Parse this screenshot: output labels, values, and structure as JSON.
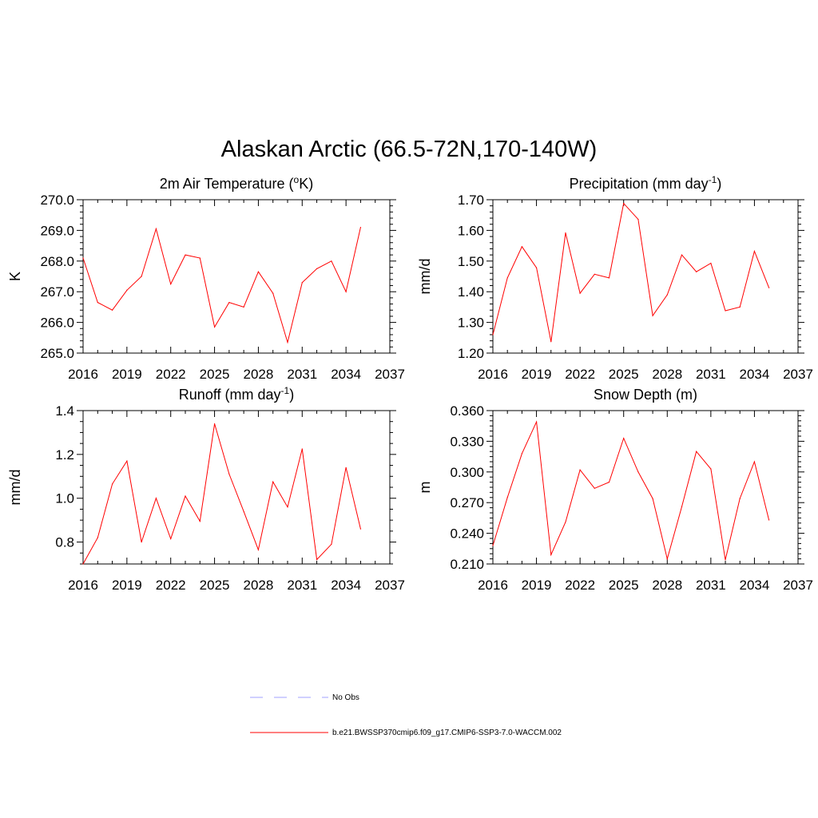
{
  "title": "Alaskan Arctic (66.5-72N,170-140W)",
  "colors": {
    "series": "#ff0000",
    "obs": "#a0a0ff",
    "axis": "#000000"
  },
  "legend": {
    "items": [
      {
        "label": "No Obs",
        "style": "dashed",
        "color": "#a0a0ff"
      },
      {
        "label": "b.e21.BWSSP370cmip6.f09_g17.CMIP6-SSP3-7.0-WACCM.002",
        "style": "solid",
        "color": "#ff0000"
      }
    ]
  },
  "chart_data": [
    {
      "type": "line",
      "title_main": "2m Air Temperature (",
      "title_sup": "o",
      "title_after": "K)",
      "ylabel": "K",
      "xlim": [
        2016,
        2037
      ],
      "ylim": [
        265.0,
        270.0
      ],
      "xticks": [
        2016,
        2019,
        2022,
        2025,
        2028,
        2031,
        2034,
        2037
      ],
      "yticks": [
        265.0,
        266.0,
        267.0,
        268.0,
        269.0,
        270.0
      ],
      "ydecimals": 1,
      "yminor": 5,
      "x": [
        2016,
        2017,
        2018,
        2019,
        2020,
        2021,
        2022,
        2023,
        2024,
        2025,
        2026,
        2027,
        2028,
        2029,
        2030,
        2031,
        2032,
        2033,
        2034,
        2035
      ],
      "series": [
        {
          "values": [
            268.1,
            266.65,
            266.4,
            267.05,
            267.5,
            269.05,
            267.25,
            268.2,
            268.1,
            265.85,
            266.65,
            266.5,
            267.65,
            266.95,
            265.35,
            267.3,
            267.75,
            268.0,
            267.0,
            269.1
          ]
        }
      ]
    },
    {
      "type": "line",
      "title_main": "Precipitation (mm day",
      "title_sup": "-1",
      "title_after": ")",
      "ylabel": "mm/d",
      "xlim": [
        2016,
        2037
      ],
      "ylim": [
        1.2,
        1.7
      ],
      "xticks": [
        2016,
        2019,
        2022,
        2025,
        2028,
        2031,
        2034,
        2037
      ],
      "yticks": [
        1.2,
        1.3,
        1.4,
        1.5,
        1.6,
        1.7
      ],
      "ydecimals": 2,
      "yminor": 5,
      "x": [
        2016,
        2017,
        2018,
        2019,
        2020,
        2021,
        2022,
        2023,
        2024,
        2025,
        2026,
        2027,
        2028,
        2029,
        2030,
        2031,
        2032,
        2033,
        2034,
        2035
      ],
      "series": [
        {
          "values": [
            1.26,
            1.445,
            1.547,
            1.478,
            1.237,
            1.592,
            1.395,
            1.457,
            1.445,
            1.688,
            1.636,
            1.322,
            1.39,
            1.52,
            1.465,
            1.493,
            1.338,
            1.35,
            1.532,
            1.413
          ]
        }
      ]
    },
    {
      "type": "line",
      "title_main": "Runoff (mm day",
      "title_sup": "-1",
      "title_after": ")",
      "ylabel": "mm/d",
      "xlim": [
        2016,
        2037
      ],
      "ylim": [
        0.7,
        1.4
      ],
      "xticks": [
        2016,
        2019,
        2022,
        2025,
        2028,
        2031,
        2034,
        2037
      ],
      "yticks": [
        0.8,
        1.0,
        1.2,
        1.4
      ],
      "ydecimals": 1,
      "yminor": 4,
      "x": [
        2016,
        2017,
        2018,
        2019,
        2020,
        2021,
        2022,
        2023,
        2024,
        2025,
        2026,
        2027,
        2028,
        2029,
        2030,
        2031,
        2032,
        2033,
        2034,
        2035
      ],
      "series": [
        {
          "values": [
            0.7,
            0.82,
            1.065,
            1.17,
            0.8,
            1.0,
            0.815,
            1.01,
            0.895,
            1.34,
            1.11,
            0.94,
            0.765,
            1.075,
            0.96,
            1.225,
            0.72,
            0.79,
            1.14,
            0.86
          ]
        }
      ]
    },
    {
      "type": "line",
      "title_main": "Snow Depth (m)",
      "title_sup": "",
      "title_after": "",
      "ylabel": "m",
      "xlim": [
        2016,
        2037
      ],
      "ylim": [
        0.21,
        0.36
      ],
      "xticks": [
        2016,
        2019,
        2022,
        2025,
        2028,
        2031,
        2034,
        2037
      ],
      "yticks": [
        0.21,
        0.24,
        0.27,
        0.3,
        0.33,
        0.36
      ],
      "ydecimals": 3,
      "yminor": 6,
      "x": [
        2016,
        2017,
        2018,
        2019,
        2020,
        2021,
        2022,
        2023,
        2024,
        2025,
        2026,
        2027,
        2028,
        2029,
        2030,
        2031,
        2032,
        2033,
        2034,
        2035
      ],
      "series": [
        {
          "values": [
            0.228,
            0.275,
            0.318,
            0.349,
            0.219,
            0.251,
            0.302,
            0.284,
            0.29,
            0.333,
            0.3,
            0.274,
            0.215,
            0.266,
            0.32,
            0.303,
            0.214,
            0.274,
            0.31,
            0.253
          ]
        }
      ]
    }
  ]
}
